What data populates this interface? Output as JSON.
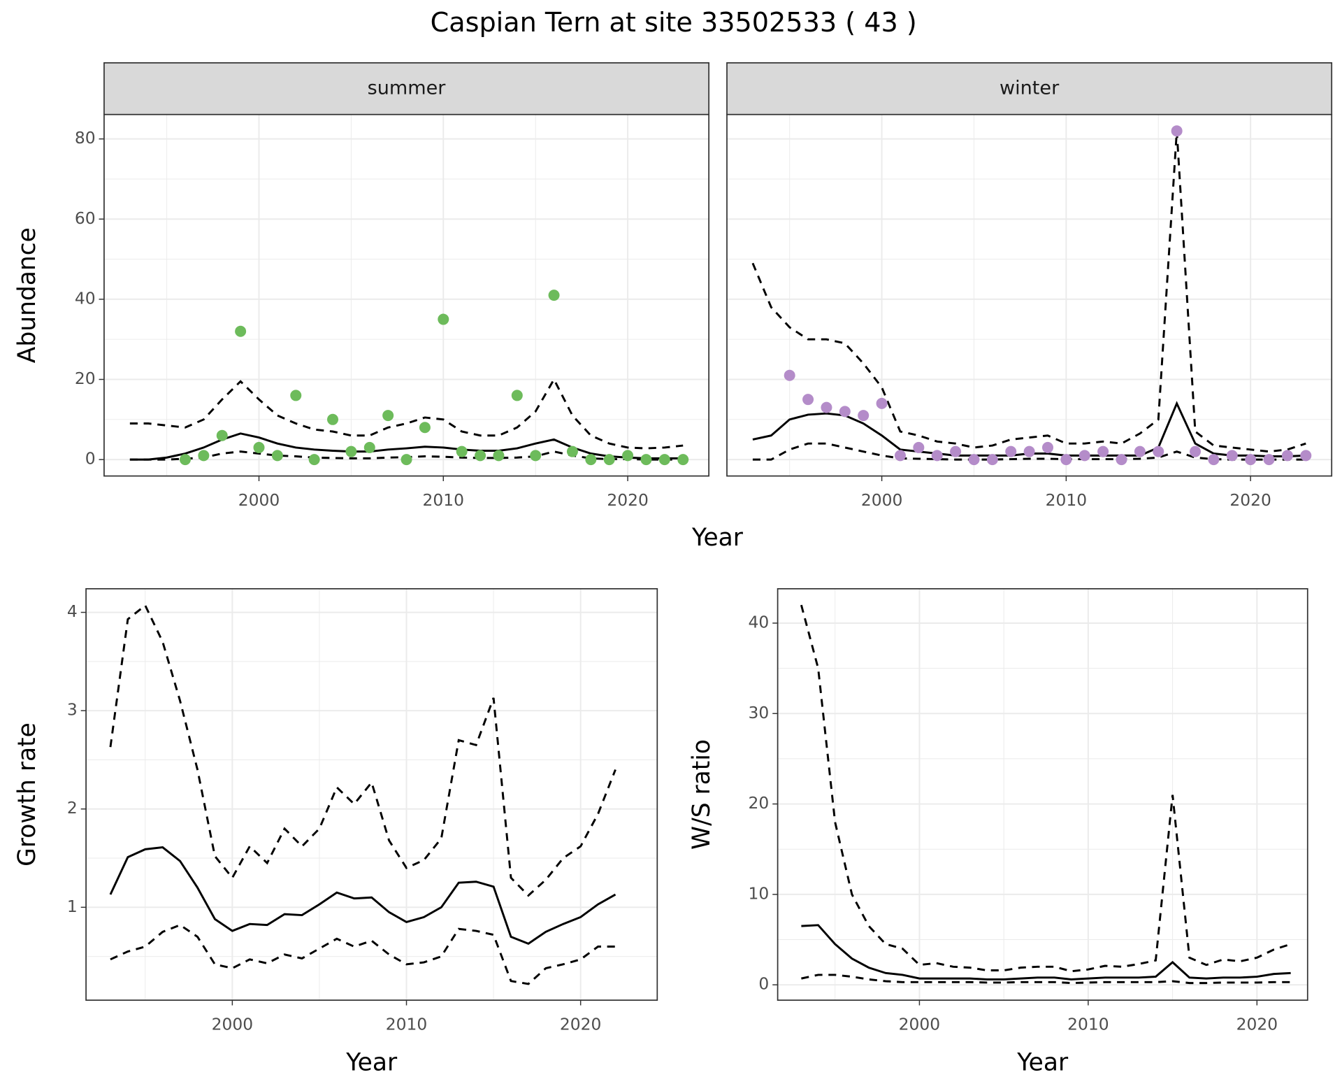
{
  "title": "Caspian Tern at site 33502533 ( 43 )",
  "chart_data": [
    {
      "type": "line",
      "facet": "summer",
      "ylabel": "Abundance",
      "xlabel": "Year",
      "xlim": [
        1991.6,
        2024.4
      ],
      "xticks": [
        2000,
        2010,
        2020
      ],
      "xminor": [
        1995,
        2005,
        2015
      ],
      "ylim": [
        -4.1,
        86.1
      ],
      "yticks": [
        0,
        20,
        40,
        60,
        80
      ],
      "yminor": [
        10,
        30,
        50,
        70
      ],
      "grid": true,
      "series": [
        {
          "kind": "dashed",
          "color": "#000000",
          "x": [
            1993,
            1994,
            1995,
            1996,
            1997,
            1998,
            1999,
            2000,
            2001,
            2002,
            2003,
            2004,
            2005,
            2006,
            2007,
            2008,
            2009,
            2010,
            2011,
            2012,
            2013,
            2014,
            2015,
            2016,
            2017,
            2018,
            2019,
            2020,
            2021,
            2022,
            2023
          ],
          "values": [
            9,
            9,
            8.5,
            8,
            10,
            15,
            19.5,
            15,
            11,
            9,
            7.5,
            7,
            6,
            6,
            8,
            9,
            10.5,
            10,
            7,
            6,
            6,
            8,
            12,
            20,
            11,
            6,
            4,
            3,
            2.8,
            3,
            3.5
          ]
        },
        {
          "kind": "dashed",
          "color": "#000000",
          "x": [
            1993,
            1994,
            1995,
            1996,
            1997,
            1998,
            1999,
            2000,
            2001,
            2002,
            2003,
            2004,
            2005,
            2006,
            2007,
            2008,
            2009,
            2010,
            2011,
            2012,
            2013,
            2014,
            2015,
            2016,
            2017,
            2018,
            2019,
            2020,
            2021,
            2022,
            2023
          ],
          "values": [
            0,
            0,
            0,
            0.2,
            0.5,
            1.5,
            2,
            1.5,
            1,
            0.8,
            0.5,
            0.4,
            0.3,
            0.3,
            0.5,
            0.6,
            0.8,
            0.7,
            0.5,
            0.4,
            0.4,
            0.5,
            0.8,
            2,
            1,
            0.3,
            0.1,
            0.1,
            0,
            0,
            0
          ]
        },
        {
          "kind": "solid",
          "color": "#000000",
          "x": [
            1993,
            1994,
            1995,
            1996,
            1997,
            1998,
            1999,
            2000,
            2001,
            2002,
            2003,
            2004,
            2005,
            2006,
            2007,
            2008,
            2009,
            2010,
            2011,
            2012,
            2013,
            2014,
            2015,
            2016,
            2017,
            2018,
            2019,
            2020,
            2021,
            2022,
            2023
          ],
          "values": [
            0,
            0,
            0.5,
            1.5,
            3,
            5,
            6.5,
            5.5,
            4,
            3,
            2.5,
            2.2,
            2,
            2,
            2.5,
            2.8,
            3.2,
            3,
            2.5,
            2.2,
            2.2,
            2.8,
            4,
            5,
            3,
            1.5,
            0.8,
            0.5,
            0.3,
            0.3,
            0.3
          ]
        },
        {
          "kind": "point",
          "color": "#6dbb5b",
          "x": [
            1996,
            1997,
            1998,
            1999,
            2000,
            2001,
            2002,
            2003,
            2004,
            2005,
            2006,
            2007,
            2008,
            2009,
            2010,
            2011,
            2012,
            2013,
            2014,
            2015,
            2016,
            2017,
            2018,
            2019,
            2020,
            2021,
            2022,
            2023
          ],
          "values": [
            0,
            1,
            6,
            32,
            3,
            1,
            16,
            0,
            10,
            2,
            3,
            11,
            0,
            8,
            35,
            2,
            1,
            1,
            16,
            1,
            41,
            2,
            0,
            0,
            1,
            0,
            0,
            0
          ]
        }
      ]
    },
    {
      "type": "line",
      "facet": "winter",
      "xlim": [
        1991.6,
        2024.4
      ],
      "xticks": [
        2000,
        2010,
        2020
      ],
      "xminor": [
        1995,
        2005,
        2015
      ],
      "ylim": [
        -4.1,
        86.1
      ],
      "yticks": [
        0,
        20,
        40,
        60,
        80
      ],
      "yminor": [
        10,
        30,
        50,
        70
      ],
      "grid": true,
      "series": [
        {
          "kind": "dashed",
          "color": "#000000",
          "x": [
            1993,
            1994,
            1995,
            1996,
            1997,
            1998,
            1999,
            2000,
            2001,
            2002,
            2003,
            2004,
            2005,
            2006,
            2007,
            2008,
            2009,
            2010,
            2011,
            2012,
            2013,
            2014,
            2015,
            2016,
            2017,
            2018,
            2019,
            2020,
            2021,
            2022,
            2023
          ],
          "values": [
            49,
            38,
            33,
            30,
            30,
            29,
            24,
            18,
            7,
            6,
            4.5,
            4,
            3,
            3.5,
            5,
            5.5,
            6,
            4,
            4,
            4.5,
            4,
            6.5,
            10,
            82,
            7,
            3.5,
            3,
            2.5,
            2,
            2.5,
            4
          ]
        },
        {
          "kind": "dashed",
          "color": "#000000",
          "x": [
            1993,
            1994,
            1995,
            1996,
            1997,
            1998,
            1999,
            2000,
            2001,
            2002,
            2003,
            2004,
            2005,
            2006,
            2007,
            2008,
            2009,
            2010,
            2011,
            2012,
            2013,
            2014,
            2015,
            2016,
            2017,
            2018,
            2019,
            2020,
            2021,
            2022,
            2023
          ],
          "values": [
            0,
            0,
            2.5,
            4,
            4,
            3,
            2,
            1,
            0.3,
            0.2,
            0.1,
            0,
            0,
            0,
            0.1,
            0.2,
            0.2,
            0.1,
            0.1,
            0.1,
            0.1,
            0.2,
            0.5,
            2,
            0.5,
            0.1,
            0,
            0,
            0,
            0,
            0
          ]
        },
        {
          "kind": "solid",
          "color": "#000000",
          "x": [
            1993,
            1994,
            1995,
            1996,
            1997,
            1998,
            1999,
            2000,
            2001,
            2002,
            2003,
            2004,
            2005,
            2006,
            2007,
            2008,
            2009,
            2010,
            2011,
            2012,
            2013,
            2014,
            2015,
            2016,
            2017,
            2018,
            2019,
            2020,
            2021,
            2022,
            2023
          ],
          "values": [
            5,
            6,
            10,
            11.2,
            11.5,
            11,
            9,
            6,
            2.5,
            2,
            1.5,
            1,
            1,
            1,
            1,
            1.5,
            1.5,
            1,
            1,
            1,
            1,
            1,
            3,
            14,
            4,
            1.5,
            1,
            1,
            0.8,
            0.8,
            1
          ]
        },
        {
          "kind": "point",
          "color": "#b48cc9",
          "x": [
            1995,
            1996,
            1997,
            1998,
            1999,
            2000,
            2001,
            2002,
            2003,
            2004,
            2005,
            2006,
            2007,
            2008,
            2009,
            2010,
            2011,
            2012,
            2013,
            2014,
            2015,
            2016,
            2017,
            2018,
            2019,
            2020,
            2021,
            2022,
            2023
          ],
          "values": [
            21,
            15,
            13,
            12,
            11,
            14,
            1,
            3,
            1,
            2,
            0,
            0,
            2,
            2,
            3,
            0,
            1,
            2,
            0,
            2,
            2,
            82,
            2,
            0,
            1,
            0,
            0,
            1,
            1
          ]
        }
      ]
    },
    {
      "type": "line",
      "ylabel": "Growth rate",
      "xlabel": "Year",
      "xlim": [
        1991.6,
        2024.4
      ],
      "xticks": [
        2000,
        2010,
        2020
      ],
      "xminor": [
        1995,
        2005,
        2015
      ],
      "ylim": [
        0.055,
        4.24
      ],
      "yticks": [
        1,
        2,
        3,
        4
      ],
      "yminor": [
        0.5,
        1.5,
        2.5,
        3.5
      ],
      "grid": true,
      "series": [
        {
          "kind": "dashed",
          "color": "#000000",
          "x": [
            1993,
            1994,
            1995,
            1996,
            1997,
            1998,
            1999,
            2000,
            2001,
            2002,
            2003,
            2004,
            2005,
            2006,
            2007,
            2008,
            2009,
            2010,
            2011,
            2012,
            2013,
            2014,
            2015,
            2016,
            2017,
            2018,
            2019,
            2020,
            2021,
            2022
          ],
          "values": [
            2.63,
            3.93,
            4.07,
            3.7,
            3.1,
            2.4,
            1.52,
            1.3,
            1.62,
            1.45,
            1.8,
            1.62,
            1.8,
            2.22,
            2.05,
            2.27,
            1.68,
            1.4,
            1.48,
            1.7,
            2.7,
            2.65,
            3.13,
            1.3,
            1.12,
            1.28,
            1.5,
            1.62,
            1.95,
            2.4
          ]
        },
        {
          "kind": "dashed",
          "color": "#000000",
          "x": [
            1993,
            1994,
            1995,
            1996,
            1997,
            1998,
            1999,
            2000,
            2001,
            2002,
            2003,
            2004,
            2005,
            2006,
            2007,
            2008,
            2009,
            2010,
            2011,
            2012,
            2013,
            2014,
            2015,
            2016,
            2017,
            2018,
            2019,
            2020,
            2021,
            2022
          ],
          "values": [
            0.47,
            0.55,
            0.6,
            0.75,
            0.82,
            0.7,
            0.42,
            0.38,
            0.47,
            0.43,
            0.52,
            0.48,
            0.58,
            0.68,
            0.6,
            0.66,
            0.52,
            0.42,
            0.44,
            0.5,
            0.78,
            0.76,
            0.72,
            0.25,
            0.22,
            0.38,
            0.42,
            0.47,
            0.6,
            0.6
          ]
        },
        {
          "kind": "solid",
          "color": "#000000",
          "x": [
            1993,
            1994,
            1995,
            1996,
            1997,
            1998,
            1999,
            2000,
            2001,
            2002,
            2003,
            2004,
            2005,
            2006,
            2007,
            2008,
            2009,
            2010,
            2011,
            2012,
            2013,
            2014,
            2015,
            2016,
            2017,
            2018,
            2019,
            2020,
            2021,
            2022
          ],
          "values": [
            1.13,
            1.51,
            1.59,
            1.61,
            1.47,
            1.2,
            0.88,
            0.76,
            0.83,
            0.82,
            0.93,
            0.92,
            1.03,
            1.15,
            1.09,
            1.1,
            0.95,
            0.85,
            0.9,
            1.0,
            1.25,
            1.26,
            1.21,
            0.7,
            0.63,
            0.75,
            0.83,
            0.9,
            1.03,
            1.13
          ]
        }
      ]
    },
    {
      "type": "line",
      "ylabel": "W/S ratio",
      "xlabel": "Year",
      "xlim": [
        1991.6,
        2023.0
      ],
      "xticks": [
        2000,
        2010,
        2020
      ],
      "xminor": [
        1995,
        2005,
        2015
      ],
      "ylim": [
        -1.7,
        43.8
      ],
      "yticks": [
        0,
        10,
        20,
        30,
        40
      ],
      "yminor": [
        5,
        15,
        25,
        35
      ],
      "grid": true,
      "series": [
        {
          "kind": "dashed",
          "color": "#000000",
          "x": [
            1993,
            1994,
            1995,
            1996,
            1997,
            1998,
            1999,
            2000,
            2001,
            2002,
            2003,
            2004,
            2005,
            2006,
            2007,
            2008,
            2009,
            2010,
            2011,
            2012,
            2013,
            2014,
            2015,
            2016,
            2017,
            2018,
            2019,
            2020,
            2021,
            2022
          ],
          "values": [
            42,
            35,
            18,
            10,
            6.5,
            4.5,
            4,
            2.2,
            2.4,
            2.0,
            1.9,
            1.6,
            1.6,
            1.9,
            2.0,
            2.0,
            1.5,
            1.7,
            2.1,
            2.0,
            2.3,
            2.7,
            21,
            3.0,
            2.2,
            2.8,
            2.6,
            3.0,
            3.9,
            4.5
          ]
        },
        {
          "kind": "dashed",
          "color": "#000000",
          "x": [
            1993,
            1994,
            1995,
            1996,
            1997,
            1998,
            1999,
            2000,
            2001,
            2002,
            2003,
            2004,
            2005,
            2006,
            2007,
            2008,
            2009,
            2010,
            2011,
            2012,
            2013,
            2014,
            2015,
            2016,
            2017,
            2018,
            2019,
            2020,
            2021,
            2022
          ],
          "values": [
            0.7,
            1.1,
            1.1,
            0.9,
            0.6,
            0.4,
            0.3,
            0.3,
            0.3,
            0.3,
            0.3,
            0.25,
            0.25,
            0.3,
            0.3,
            0.3,
            0.2,
            0.25,
            0.3,
            0.3,
            0.3,
            0.3,
            0.4,
            0.2,
            0.2,
            0.25,
            0.25,
            0.25,
            0.3,
            0.3
          ]
        },
        {
          "kind": "solid",
          "color": "#000000",
          "x": [
            1993,
            1994,
            1995,
            1996,
            1997,
            1998,
            1999,
            2000,
            2001,
            2002,
            2003,
            2004,
            2005,
            2006,
            2007,
            2008,
            2009,
            2010,
            2011,
            2012,
            2013,
            2014,
            2015,
            2016,
            2017,
            2018,
            2019,
            2020,
            2021,
            2022
          ],
          "values": [
            6.5,
            6.6,
            4.5,
            2.9,
            1.9,
            1.3,
            1.1,
            0.7,
            0.7,
            0.7,
            0.7,
            0.6,
            0.6,
            0.7,
            0.8,
            0.8,
            0.6,
            0.7,
            0.8,
            0.8,
            0.8,
            0.9,
            2.5,
            0.8,
            0.7,
            0.8,
            0.8,
            0.9,
            1.2,
            1.3
          ]
        }
      ]
    }
  ]
}
